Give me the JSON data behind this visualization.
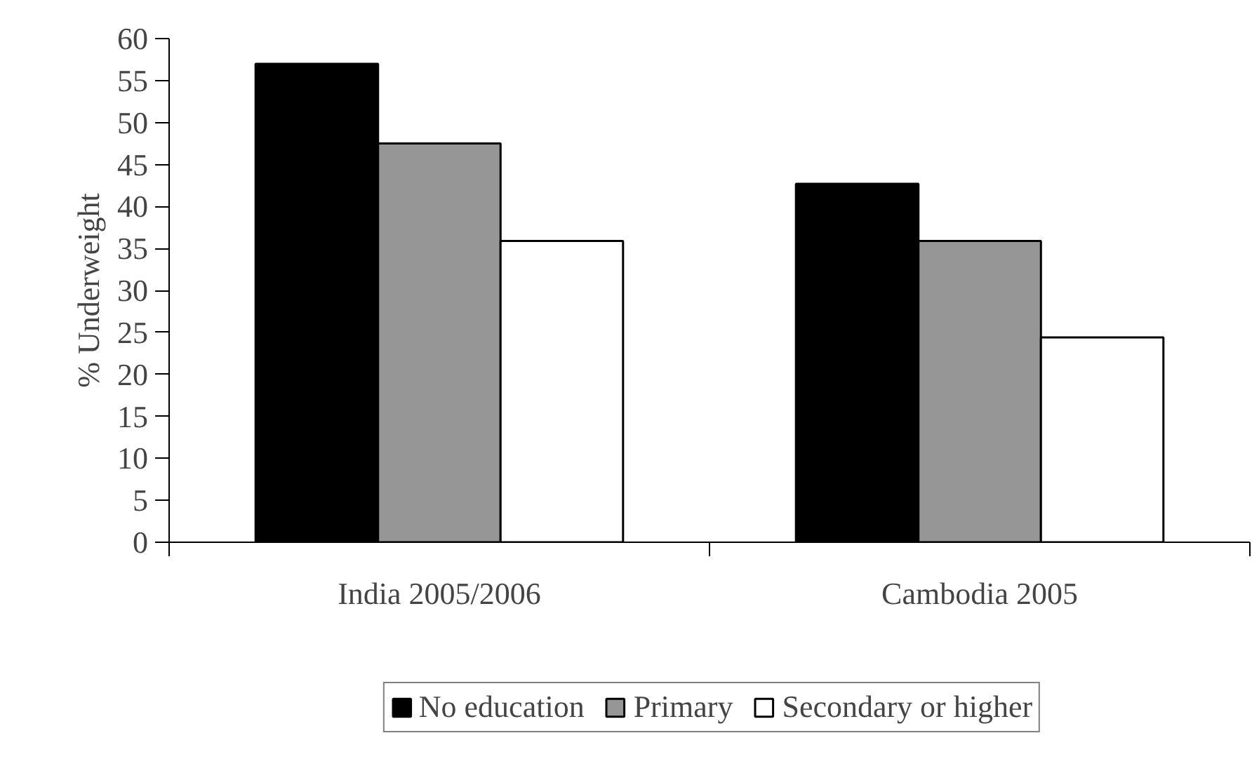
{
  "chart_data": {
    "type": "bar",
    "ylabel": "% Underweight",
    "categories": [
      "India 2005/2006",
      "Cambodia 2005"
    ],
    "series": [
      {
        "name": "No education",
        "color": "#000000",
        "values": [
          57.0,
          42.7
        ]
      },
      {
        "name": "Primary",
        "color": "#969696",
        "values": [
          47.5,
          35.9
        ]
      },
      {
        "name": "Secondary or higher",
        "color": "#ffffff",
        "values": [
          35.9,
          24.4
        ]
      }
    ],
    "ylim": [
      0,
      60
    ],
    "yticks": [
      0,
      5,
      10,
      15,
      20,
      25,
      30,
      35,
      40,
      45,
      50,
      55,
      60
    ],
    "grid": false,
    "legend": "bottom"
  }
}
